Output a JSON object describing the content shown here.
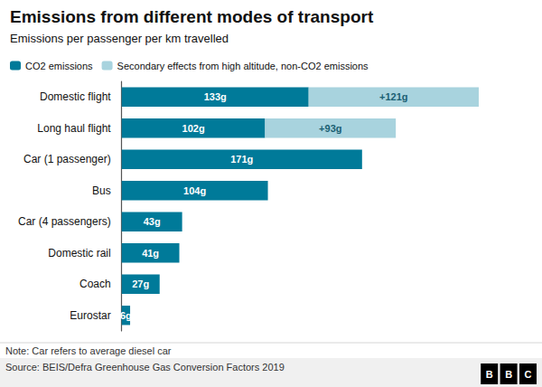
{
  "chart_data": {
    "type": "bar",
    "orientation": "horizontal",
    "stacked": true,
    "title": "Emissions from different modes of transport",
    "subtitle": "Emissions per passenger per km travelled",
    "categories": [
      "Domestic flight",
      "Long haul flight",
      "Car (1 passenger)",
      "Bus",
      "Car (4 passengers)",
      "Domestic rail",
      "Coach",
      "Eurostar"
    ],
    "series": [
      {
        "name": "CO2 emissions",
        "color": "#007A99",
        "values": [
          133,
          102,
          171,
          104,
          43,
          41,
          27,
          6
        ],
        "value_labels": [
          "133g",
          "102g",
          "171g",
          "104g",
          "43g",
          "41g",
          "27g",
          "6g"
        ]
      },
      {
        "name": "Secondary effects from high altitude, non-CO2 emissions",
        "color": "#A8D3DE",
        "values": [
          121,
          93,
          0,
          0,
          0,
          0,
          0,
          0
        ],
        "value_labels": [
          "+121g",
          "+93g",
          null,
          null,
          null,
          null,
          null,
          null
        ]
      }
    ],
    "xlim": [
      0,
      290
    ],
    "data_labels": true,
    "tick_labels": "y",
    "grid": false,
    "legend": "upper left",
    "annotations": [
      "Note: Car refers to average diesel car",
      "Source: BEIS/Defra Greenhouse Gas Conversion Factors 2019",
      "BBC"
    ]
  }
}
